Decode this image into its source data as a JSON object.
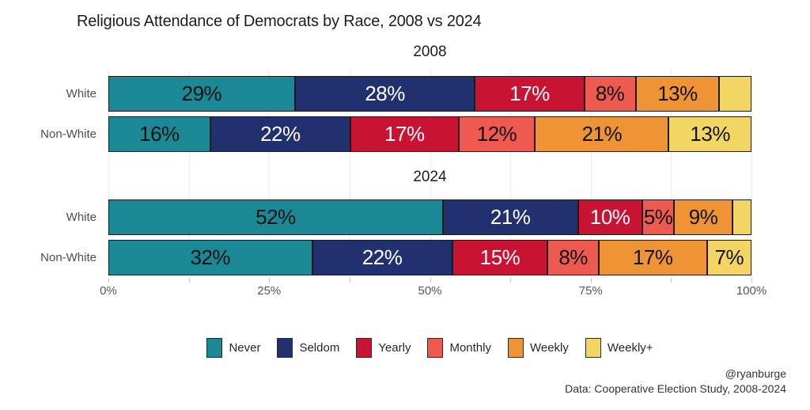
{
  "title": "Religious Attendance of Democrats by Race, 2008 vs 2024",
  "footer": {
    "handle": "@ryanburge",
    "source": "Data: Cooperative Election Study, 2008-2024"
  },
  "colors": {
    "never": "#1A8995",
    "seldom": "#21306F",
    "yearly": "#C81332",
    "monthly": "#EE5A4F",
    "weekly": "#EF9434",
    "weekly_plus": "#F3D563",
    "bar_border": "#1B1B1B"
  },
  "chart_data": {
    "type": "bar",
    "stacked": true,
    "orientation": "horizontal",
    "title": "Religious Attendance of Democrats by Race, 2008 vs 2024",
    "categories": [
      "Never",
      "Seldom",
      "Yearly",
      "Monthly",
      "Weekly",
      "Weekly+"
    ],
    "series_colors": [
      "#1A8995",
      "#21306F",
      "#C81332",
      "#EE5A4F",
      "#EF9434",
      "#F3D563"
    ],
    "series_text_colors": [
      "#111111",
      "#ffffff",
      "#ffffff",
      "#111111",
      "#111111",
      "#111111"
    ],
    "panels": [
      {
        "title": "2008",
        "rows": [
          {
            "label": "White",
            "values": [
              29,
              28,
              17,
              8,
              13,
              5
            ],
            "value_labels": [
              "29%",
              "28%",
              "17%",
              "8%",
              "13%",
              ""
            ]
          },
          {
            "label": "Non-White",
            "values": [
              16,
              22,
              17,
              12,
              21,
              13
            ],
            "value_labels": [
              "16%",
              "22%",
              "17%",
              "12%",
              "21%",
              "13%"
            ]
          }
        ]
      },
      {
        "title": "2024",
        "rows": [
          {
            "label": "White",
            "values": [
              52,
              21,
              10,
              5,
              9,
              3
            ],
            "value_labels": [
              "52%",
              "21%",
              "10%",
              "5%",
              "9%",
              ""
            ]
          },
          {
            "label": "Non-White",
            "values": [
              32,
              22,
              15,
              8,
              17,
              7
            ],
            "value_labels": [
              "32%",
              "22%",
              "15%",
              "8%",
              "17%",
              "7%"
            ]
          }
        ]
      }
    ],
    "xlim": [
      0,
      100
    ],
    "x_major_ticks": {
      "values": [
        0,
        25,
        50,
        75,
        100
      ],
      "labels": [
        "0%",
        "25%",
        "50%",
        "75%",
        "100%"
      ]
    },
    "x_minor_tick_step": 12.5,
    "grid": true,
    "legend_position": "bottom"
  }
}
